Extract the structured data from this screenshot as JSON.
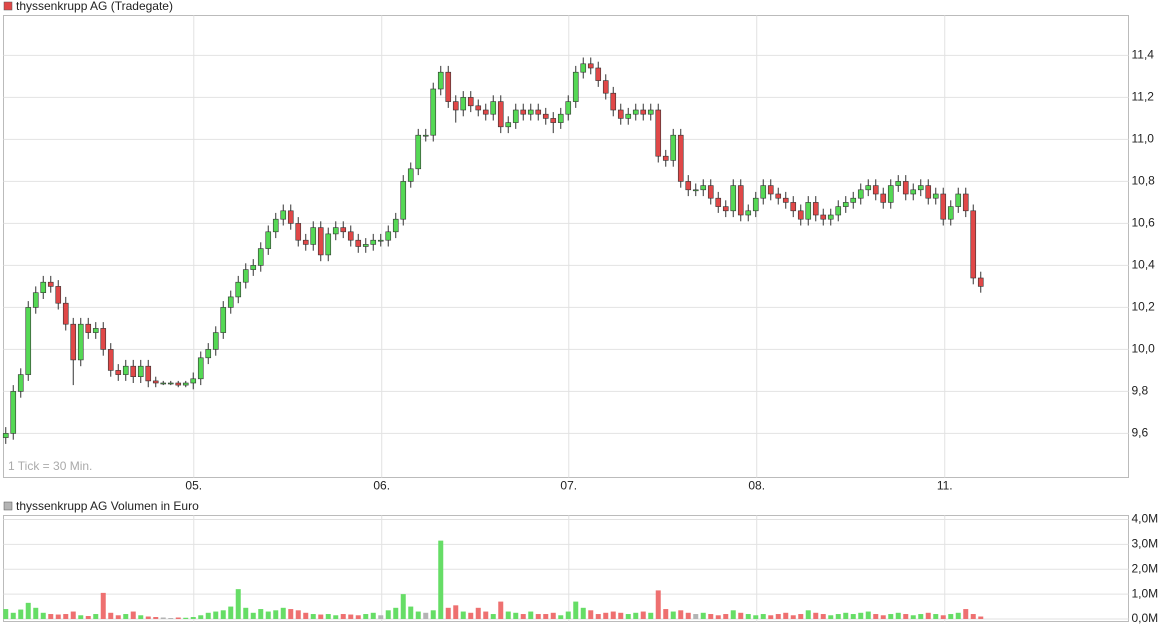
{
  "chart_data": [
    {
      "type": "candlestick",
      "legend": "thyssenkrupp AG (Tradegate)",
      "annotation": "1 Tick = 30 Min.",
      "x": [
        0,
        1,
        2,
        3,
        4,
        5,
        6,
        7,
        8,
        9,
        10,
        11,
        12,
        13,
        14,
        15,
        16,
        17,
        18,
        19,
        20,
        21,
        22,
        23,
        24,
        25,
        26,
        27,
        28,
        29,
        30,
        31,
        32,
        33,
        34,
        35,
        36,
        37,
        38,
        39,
        40,
        41,
        42,
        43,
        44,
        45,
        46,
        47,
        48,
        49,
        50,
        51,
        52,
        53,
        54,
        55,
        56,
        57,
        58,
        59,
        60,
        61,
        62,
        63,
        64,
        65,
        66,
        67,
        68,
        69,
        70,
        71,
        72,
        73,
        74,
        75,
        76,
        77,
        78,
        79,
        80,
        81,
        82,
        83,
        84,
        85,
        86,
        87,
        88,
        89,
        90,
        91,
        92,
        93,
        94,
        95,
        96,
        97,
        98,
        99,
        100,
        101,
        102,
        103,
        104,
        105,
        106,
        107,
        108,
        109,
        110,
        111,
        112,
        113,
        114,
        115,
        116,
        117,
        118,
        119,
        120,
        121,
        122,
        123,
        124,
        125,
        126,
        127,
        128,
        129,
        130
      ],
      "open": [
        9.58,
        9.6,
        9.8,
        9.88,
        10.2,
        10.27,
        10.32,
        10.3,
        10.22,
        10.12,
        9.95,
        10.12,
        10.08,
        10.1,
        10.0,
        9.9,
        9.88,
        9.92,
        9.87,
        9.92,
        9.85,
        9.84,
        9.84,
        9.84,
        9.83,
        9.84,
        9.86,
        9.96,
        10.0,
        10.08,
        10.2,
        10.25,
        10.32,
        10.38,
        10.4,
        10.48,
        10.56,
        10.62,
        10.66,
        10.6,
        10.52,
        10.5,
        10.58,
        10.45,
        10.55,
        10.58,
        10.56,
        10.52,
        10.49,
        10.5,
        10.52,
        10.52,
        10.56,
        10.62,
        10.8,
        10.86,
        11.02,
        11.02,
        11.24,
        11.32,
        11.18,
        11.14,
        11.2,
        11.16,
        11.14,
        11.12,
        11.18,
        11.06,
        11.08,
        11.14,
        11.12,
        11.14,
        11.12,
        11.1,
        11.08,
        11.12,
        11.18,
        11.32,
        11.36,
        11.34,
        11.28,
        11.22,
        11.14,
        11.1,
        11.12,
        11.14,
        11.12,
        11.14,
        10.92,
        10.9,
        11.02,
        10.8,
        10.76,
        10.76,
        10.78,
        10.72,
        10.68,
        10.66,
        10.78,
        10.64,
        10.66,
        10.72,
        10.78,
        10.74,
        10.72,
        10.7,
        10.66,
        10.62,
        10.7,
        10.64,
        10.62,
        10.64,
        10.68,
        10.7,
        10.72,
        10.76,
        10.78,
        10.74,
        10.7,
        10.78,
        10.8,
        10.74,
        10.76,
        10.78,
        10.72,
        10.74,
        10.62,
        10.68,
        10.74,
        10.66,
        10.34
      ],
      "high": [
        9.63,
        9.83,
        9.91,
        10.23,
        10.3,
        10.35,
        10.35,
        10.33,
        10.25,
        10.15,
        10.15,
        10.15,
        10.13,
        10.13,
        10.03,
        9.93,
        9.95,
        9.95,
        9.95,
        9.95,
        9.87,
        9.85,
        9.85,
        9.85,
        9.85,
        9.89,
        9.99,
        10.03,
        10.11,
        10.23,
        10.28,
        10.35,
        10.41,
        10.43,
        10.51,
        10.59,
        10.65,
        10.69,
        10.69,
        10.63,
        10.55,
        10.61,
        10.61,
        10.58,
        10.61,
        10.61,
        10.59,
        10.55,
        10.53,
        10.55,
        10.55,
        10.59,
        10.65,
        10.83,
        10.89,
        11.05,
        11.05,
        11.27,
        11.35,
        11.35,
        11.21,
        11.23,
        11.23,
        11.19,
        11.17,
        11.21,
        11.21,
        11.11,
        11.17,
        11.17,
        11.17,
        11.17,
        11.15,
        11.13,
        11.15,
        11.21,
        11.35,
        11.39,
        11.39,
        11.37,
        11.31,
        11.25,
        11.17,
        11.15,
        11.17,
        11.17,
        11.17,
        11.17,
        10.95,
        11.05,
        11.05,
        10.83,
        10.79,
        10.81,
        10.81,
        10.75,
        10.71,
        10.81,
        10.81,
        10.69,
        10.75,
        10.81,
        10.81,
        10.77,
        10.75,
        10.73,
        10.69,
        10.73,
        10.73,
        10.67,
        10.67,
        10.71,
        10.73,
        10.75,
        10.79,
        10.81,
        10.81,
        10.77,
        10.81,
        10.83,
        10.83,
        10.79,
        10.81,
        10.81,
        10.77,
        10.77,
        10.71,
        10.77,
        10.77,
        10.69,
        10.37
      ],
      "low": [
        9.55,
        9.57,
        9.77,
        9.85,
        10.17,
        10.24,
        10.27,
        10.19,
        10.09,
        9.83,
        9.92,
        10.05,
        10.05,
        9.97,
        9.87,
        9.85,
        9.85,
        9.84,
        9.84,
        9.82,
        9.82,
        9.83,
        9.83,
        9.82,
        9.82,
        9.81,
        9.83,
        9.93,
        9.97,
        10.05,
        10.17,
        10.22,
        10.29,
        10.35,
        10.37,
        10.45,
        10.53,
        10.59,
        10.57,
        10.49,
        10.47,
        10.47,
        10.42,
        10.42,
        10.52,
        10.53,
        10.49,
        10.46,
        10.46,
        10.47,
        10.49,
        10.49,
        10.53,
        10.59,
        10.77,
        10.83,
        10.99,
        10.99,
        11.21,
        11.15,
        11.08,
        11.11,
        11.13,
        11.11,
        11.09,
        11.09,
        11.03,
        11.03,
        11.05,
        11.09,
        11.09,
        11.09,
        11.07,
        11.03,
        11.05,
        11.09,
        11.15,
        11.29,
        11.31,
        11.25,
        11.19,
        11.11,
        11.07,
        11.07,
        11.09,
        11.09,
        11.09,
        10.89,
        10.87,
        10.87,
        10.77,
        10.73,
        10.73,
        10.73,
        10.69,
        10.65,
        10.63,
        10.63,
        10.61,
        10.61,
        10.63,
        10.69,
        10.71,
        10.69,
        10.67,
        10.63,
        10.59,
        10.59,
        10.61,
        10.59,
        10.59,
        10.61,
        10.65,
        10.67,
        10.69,
        10.73,
        10.71,
        10.67,
        10.67,
        10.75,
        10.71,
        10.71,
        10.73,
        10.69,
        10.69,
        10.59,
        10.59,
        10.65,
        10.63,
        10.31,
        10.27
      ],
      "close": [
        9.6,
        9.8,
        9.88,
        10.2,
        10.27,
        10.32,
        10.3,
        10.22,
        10.12,
        9.95,
        10.12,
        10.08,
        10.1,
        10.0,
        9.9,
        9.88,
        9.92,
        9.87,
        9.92,
        9.85,
        9.84,
        9.84,
        9.84,
        9.83,
        9.84,
        9.86,
        9.96,
        10.0,
        10.08,
        10.2,
        10.25,
        10.32,
        10.38,
        10.4,
        10.48,
        10.56,
        10.62,
        10.66,
        10.6,
        10.52,
        10.5,
        10.58,
        10.45,
        10.55,
        10.58,
        10.56,
        10.52,
        10.49,
        10.5,
        10.52,
        10.52,
        10.56,
        10.62,
        10.8,
        10.86,
        11.02,
        11.02,
        11.24,
        11.32,
        11.18,
        11.14,
        11.2,
        11.16,
        11.14,
        11.12,
        11.18,
        11.06,
        11.08,
        11.14,
        11.12,
        11.14,
        11.12,
        11.1,
        11.08,
        11.12,
        11.18,
        11.32,
        11.36,
        11.34,
        11.28,
        11.22,
        11.14,
        11.1,
        11.12,
        11.14,
        11.12,
        11.14,
        10.92,
        10.9,
        11.02,
        10.8,
        10.76,
        10.76,
        10.78,
        10.72,
        10.68,
        10.66,
        10.78,
        10.64,
        10.66,
        10.72,
        10.78,
        10.74,
        10.72,
        10.7,
        10.66,
        10.62,
        10.7,
        10.64,
        10.62,
        10.64,
        10.68,
        10.7,
        10.72,
        10.76,
        10.78,
        10.74,
        10.7,
        10.78,
        10.8,
        10.74,
        10.76,
        10.78,
        10.72,
        10.74,
        10.62,
        10.68,
        10.74,
        10.66,
        10.34,
        10.3
      ],
      "up_color": "#55d855",
      "down_color": "#e04848",
      "legend_color": "#e04848",
      "xlim": [
        -0.3,
        149.7
      ],
      "xticks": [
        {
          "value": 25.07,
          "label": "05."
        },
        {
          "value": 50.13,
          "label": "06."
        },
        {
          "value": 75.07,
          "label": "07."
        },
        {
          "value": 100.13,
          "label": "08."
        },
        {
          "value": 125.2,
          "label": "11."
        }
      ],
      "ylim": [
        9.39,
        11.59
      ],
      "yticks": [
        {
          "value": 9.6,
          "label": "9,6"
        },
        {
          "value": 9.8,
          "label": "9,8"
        },
        {
          "value": 10.0,
          "label": "10,0"
        },
        {
          "value": 10.2,
          "label": "10,2"
        },
        {
          "value": 10.4,
          "label": "10,4"
        },
        {
          "value": 10.6,
          "label": "10,6"
        },
        {
          "value": 10.8,
          "label": "10,8"
        },
        {
          "value": 11.0,
          "label": "11,0"
        },
        {
          "value": 11.2,
          "label": "11,2"
        },
        {
          "value": 11.4,
          "label": "11,4"
        }
      ],
      "grid": true
    },
    {
      "type": "volume",
      "legend": "thyssenkrupp AG Volumen in Euro",
      "values": [
        400000,
        250000,
        380000,
        650000,
        450000,
        250000,
        200000,
        180000,
        200000,
        300000,
        150000,
        120000,
        200000,
        1050000,
        250000,
        150000,
        200000,
        300000,
        150000,
        100000,
        80000,
        60000,
        40000,
        60000,
        50000,
        80000,
        150000,
        250000,
        300000,
        350000,
        500000,
        1200000,
        450000,
        250000,
        400000,
        300000,
        350000,
        450000,
        400000,
        350000,
        250000,
        200000,
        180000,
        200000,
        150000,
        200000,
        180000,
        150000,
        200000,
        250000,
        150000,
        350000,
        450000,
        1000000,
        500000,
        300000,
        250000,
        350000,
        3150000,
        450000,
        550000,
        300000,
        250000,
        450000,
        300000,
        200000,
        700000,
        300000,
        250000,
        200000,
        300000,
        200000,
        200000,
        250000,
        150000,
        300000,
        700000,
        450000,
        350000,
        200000,
        250000,
        300000,
        250000,
        200000,
        250000,
        300000,
        250000,
        1150000,
        400000,
        300000,
        350000,
        250000,
        200000,
        250000,
        200000,
        150000,
        200000,
        350000,
        250000,
        200000,
        150000,
        200000,
        150000,
        200000,
        250000,
        150000,
        200000,
        350000,
        250000,
        200000,
        150000,
        200000,
        250000,
        200000,
        250000,
        300000,
        200000,
        150000,
        200000,
        250000,
        200000,
        150000,
        200000,
        250000,
        200000,
        150000,
        200000,
        250000,
        400000,
        200000,
        100000
      ],
      "up_color": "#66dd66",
      "down_color": "#ee7070",
      "flat_color": "#b4b4b4",
      "legend_color": "#b4b4b4",
      "ylim": [
        -100000,
        4160000
      ],
      "yticks": [
        {
          "value": 0,
          "label": "0,0M"
        },
        {
          "value": 1000000,
          "label": "1,0M"
        },
        {
          "value": 2000000,
          "label": "2,0M"
        },
        {
          "value": 3000000,
          "label": "3,0M"
        },
        {
          "value": 4000000,
          "label": "4,0M"
        }
      ],
      "grid": true
    }
  ]
}
